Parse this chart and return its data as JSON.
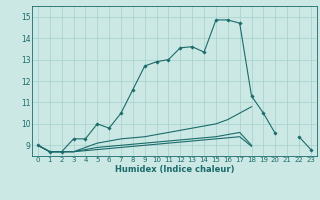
{
  "title": "",
  "xlabel": "Humidex (Indice chaleur)",
  "background_color": "#cce8e4",
  "grid_color": "#aad4d0",
  "line_color": "#1a6b6b",
  "xlim": [
    -0.5,
    23.5
  ],
  "ylim": [
    8.5,
    15.5
  ],
  "yticks": [
    9,
    10,
    11,
    12,
    13,
    14,
    15
  ],
  "xticks": [
    0,
    1,
    2,
    3,
    4,
    5,
    6,
    7,
    8,
    9,
    10,
    11,
    12,
    13,
    14,
    15,
    16,
    17,
    18,
    19,
    20,
    21,
    22,
    23
  ],
  "x": [
    0,
    1,
    2,
    3,
    4,
    5,
    6,
    7,
    8,
    9,
    10,
    11,
    12,
    13,
    14,
    15,
    16,
    17,
    18,
    19,
    20,
    21,
    22,
    23
  ],
  "line1": [
    9.0,
    8.7,
    8.7,
    9.3,
    9.3,
    10.0,
    9.8,
    10.5,
    11.6,
    12.7,
    12.9,
    13.0,
    13.55,
    13.6,
    13.35,
    14.85,
    14.85,
    14.7,
    11.3,
    10.5,
    9.55,
    null,
    9.4,
    8.8
  ],
  "line2": [
    9.0,
    8.7,
    8.7,
    8.7,
    8.9,
    9.1,
    9.2,
    9.3,
    9.35,
    9.4,
    9.5,
    9.6,
    9.7,
    9.8,
    9.9,
    10.0,
    10.2,
    10.5,
    10.8,
    null,
    null,
    null,
    null,
    null
  ],
  "line3": [
    9.0,
    8.7,
    8.7,
    8.7,
    8.8,
    8.9,
    8.95,
    9.0,
    9.05,
    9.1,
    9.15,
    9.2,
    9.25,
    9.3,
    9.35,
    9.4,
    9.5,
    9.6,
    9.0,
    null,
    null,
    null,
    null,
    null
  ],
  "line4": [
    9.0,
    8.7,
    8.7,
    8.7,
    8.75,
    8.8,
    8.85,
    8.9,
    8.95,
    9.0,
    9.05,
    9.1,
    9.15,
    9.2,
    9.25,
    9.3,
    9.35,
    9.4,
    8.95,
    null,
    null,
    null,
    null,
    null
  ]
}
